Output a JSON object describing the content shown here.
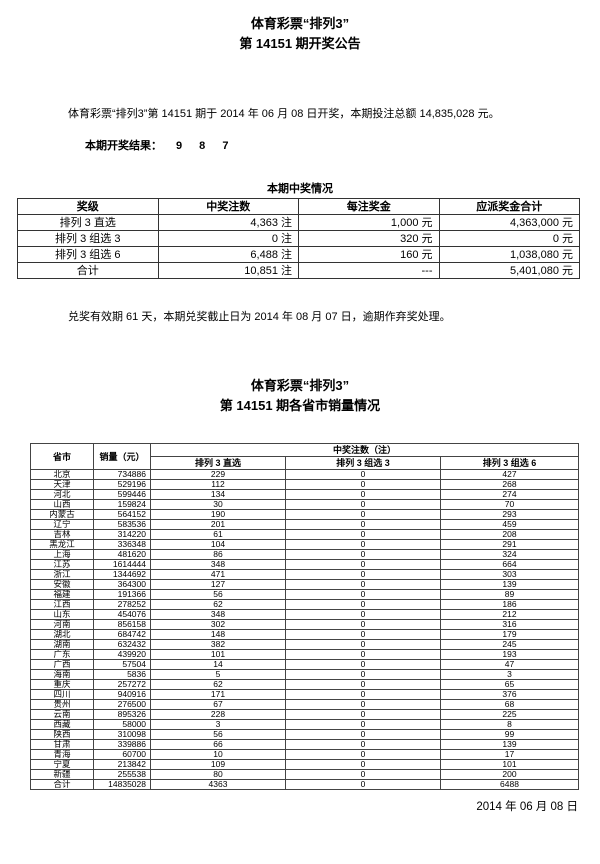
{
  "doc": {
    "title_line1": "体育彩票“排列3”",
    "title_line2": "第 14151 期开奖公告",
    "intro": "体育彩票“排列3”第 14151 期于 2014 年 06 月 08 日开奖，本期投注总额 14,835,028 元。",
    "result_label": "本期开奖结果：",
    "result_numbers": "9 8 7",
    "redeem_note": "兑奖有效期 61 天，本期兑奖截止日为 2014 年 08 月 07 日，逾期作弃奖处理。",
    "title2_line1": "体育彩票“排列3”",
    "title2_line2": "第 14151 期各省市销量情况",
    "footer_date": "2014 年 06 月 08 日"
  },
  "prize_table": {
    "caption": "本期中奖情况",
    "headers": [
      "奖级",
      "中奖注数",
      "每注奖金",
      "应派奖金合计"
    ],
    "rows": [
      [
        "排列 3 直选",
        "4,363 注",
        "1,000 元",
        "4,363,000 元"
      ],
      [
        "排列 3 组选 3",
        "0 注",
        "320 元",
        "0 元"
      ],
      [
        "排列 3 组选 6",
        "6,488 注",
        "160 元",
        "1,038,080 元"
      ],
      [
        "合计",
        "10,851 注",
        "---",
        "5,401,080 元"
      ]
    ]
  },
  "sales_table": {
    "col_province": "省市",
    "col_sales": "销量（元）",
    "col_wins_group": "中奖注数（注）",
    "col_zhixuan": "排列 3 直选",
    "col_zuxuan3": "排列 3 组选 3",
    "col_zuxuan6": "排列 3 组选 6",
    "rows": [
      [
        "北京",
        "734886",
        "229",
        "0",
        "427"
      ],
      [
        "天津",
        "529196",
        "112",
        "0",
        "268"
      ],
      [
        "河北",
        "599446",
        "134",
        "0",
        "274"
      ],
      [
        "山西",
        "159824",
        "30",
        "0",
        "70"
      ],
      [
        "内蒙古",
        "564152",
        "190",
        "0",
        "293"
      ],
      [
        "辽宁",
        "583536",
        "201",
        "0",
        "459"
      ],
      [
        "吉林",
        "314220",
        "61",
        "0",
        "208"
      ],
      [
        "黑龙江",
        "336348",
        "104",
        "0",
        "291"
      ],
      [
        "上海",
        "481620",
        "86",
        "0",
        "324"
      ],
      [
        "江苏",
        "1614444",
        "348",
        "0",
        "664"
      ],
      [
        "浙江",
        "1344692",
        "471",
        "0",
        "303"
      ],
      [
        "安徽",
        "364300",
        "127",
        "0",
        "139"
      ],
      [
        "福建",
        "191366",
        "56",
        "0",
        "89"
      ],
      [
        "江西",
        "278252",
        "62",
        "0",
        "186"
      ],
      [
        "山东",
        "454076",
        "348",
        "0",
        "212"
      ],
      [
        "河南",
        "856158",
        "302",
        "0",
        "316"
      ],
      [
        "湖北",
        "684742",
        "148",
        "0",
        "179"
      ],
      [
        "湖南",
        "632432",
        "382",
        "0",
        "245"
      ],
      [
        "广东",
        "439920",
        "101",
        "0",
        "193"
      ],
      [
        "广西",
        "57504",
        "14",
        "0",
        "47"
      ],
      [
        "海南",
        "5836",
        "5",
        "0",
        "3"
      ],
      [
        "重庆",
        "257272",
        "62",
        "0",
        "65"
      ],
      [
        "四川",
        "940916",
        "171",
        "0",
        "376"
      ],
      [
        "贵州",
        "276500",
        "67",
        "0",
        "68"
      ],
      [
        "云南",
        "895326",
        "228",
        "0",
        "225"
      ],
      [
        "西藏",
        "58000",
        "3",
        "0",
        "8"
      ],
      [
        "陕西",
        "310098",
        "56",
        "0",
        "99"
      ],
      [
        "甘肃",
        "339886",
        "66",
        "0",
        "139"
      ],
      [
        "青海",
        "60700",
        "10",
        "0",
        "17"
      ],
      [
        "宁夏",
        "213842",
        "109",
        "0",
        "101"
      ],
      [
        "新疆",
        "255538",
        "80",
        "0",
        "200"
      ],
      [
        "合计",
        "14835028",
        "4363",
        "0",
        "6488"
      ]
    ]
  }
}
